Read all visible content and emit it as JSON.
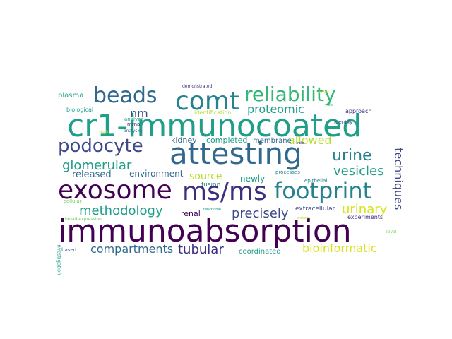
{
  "palette": {
    "dark_purple": "#440154",
    "indigo": "#3b2f7e",
    "slate_blue": "#3e4a89",
    "steel_blue": "#31688e",
    "teal": "#26828e",
    "sea_green": "#1f9e89",
    "green": "#35b779",
    "light_green": "#6ece58",
    "lime": "#b5de2b",
    "yellow": "#d8e219"
  },
  "words": [
    {
      "text": "immunoabsorption",
      "color": "dark_purple",
      "icon": "word"
    },
    {
      "text": "cr1-immunocoated",
      "color": "sea_green",
      "icon": "word"
    },
    {
      "text": "attesting",
      "color": "steel_blue",
      "icon": "word"
    },
    {
      "text": "exosome",
      "color": "dark_purple",
      "icon": "word"
    },
    {
      "text": "ms/ms",
      "color": "indigo",
      "icon": "word"
    },
    {
      "text": "footprint",
      "color": "teal",
      "icon": "word"
    },
    {
      "text": "comt",
      "color": "teal",
      "icon": "word"
    },
    {
      "text": "beads",
      "color": "steel_blue",
      "icon": "word"
    },
    {
      "text": "reliability",
      "color": "green",
      "icon": "word"
    },
    {
      "text": "podocyte",
      "color": "slate_blue",
      "icon": "word"
    },
    {
      "text": "urine",
      "color": "teal",
      "icon": "word"
    },
    {
      "text": "glomerular",
      "color": "sea_green",
      "icon": "word"
    },
    {
      "text": "methodology",
      "color": "sea_green",
      "icon": "word"
    },
    {
      "text": "vesicles",
      "color": "sea_green",
      "icon": "word"
    },
    {
      "text": "urinary",
      "color": "yellow",
      "icon": "word"
    },
    {
      "text": "techniques",
      "color": "slate_blue",
      "icon": "word"
    },
    {
      "text": "precisely",
      "color": "slate_blue",
      "icon": "word"
    },
    {
      "text": "tubular",
      "color": "indigo",
      "icon": "word"
    },
    {
      "text": "compartments",
      "color": "steel_blue",
      "icon": "word"
    },
    {
      "text": "bioinformatic",
      "color": "yellow",
      "icon": "word"
    },
    {
      "text": "proteomic",
      "color": "sea_green",
      "icon": "word"
    },
    {
      "text": "allowed",
      "color": "lime",
      "icon": "word"
    },
    {
      "text": "nm",
      "color": "slate_blue",
      "icon": "word"
    },
    {
      "text": "source",
      "color": "lime",
      "icon": "word"
    },
    {
      "text": "released",
      "color": "steel_blue",
      "icon": "word"
    },
    {
      "text": "environment",
      "color": "steel_blue",
      "icon": "word"
    },
    {
      "text": "newly",
      "color": "sea_green",
      "icon": "word"
    },
    {
      "text": "kidney",
      "color": "steel_blue",
      "icon": "word"
    },
    {
      "text": "completed",
      "color": "sea_green",
      "icon": "word"
    },
    {
      "text": "membrane",
      "color": "steel_blue",
      "icon": "word"
    },
    {
      "text": "renal",
      "color": "dark_purple",
      "icon": "word"
    },
    {
      "text": "coordinated",
      "color": "sea_green",
      "icon": "word"
    },
    {
      "text": "extracellular",
      "color": "slate_blue",
      "icon": "word"
    },
    {
      "text": "plasma",
      "color": "sea_green",
      "icon": "word"
    },
    {
      "text": "biological",
      "color": "sea_green",
      "icon": "word"
    },
    {
      "text": "mrna",
      "color": "indigo",
      "icon": "word"
    },
    {
      "text": "analyze",
      "color": "sea_green",
      "icon": "word"
    },
    {
      "text": "analysis",
      "color": "steel_blue",
      "icon": "word"
    },
    {
      "text": "identification",
      "color": "lime",
      "icon": "word"
    },
    {
      "text": "approach",
      "color": "indigo",
      "icon": "word"
    },
    {
      "text": "identify",
      "color": "slate_blue",
      "icon": "word"
    },
    {
      "text": "processes",
      "color": "teal",
      "icon": "word"
    },
    {
      "text": "epithelial",
      "color": "teal",
      "icon": "word"
    },
    {
      "text": "fusion",
      "color": "teal",
      "icon": "word"
    },
    {
      "text": "experiments",
      "color": "indigo",
      "icon": "word"
    },
    {
      "text": "investigation",
      "color": "sea_green",
      "icon": "word"
    },
    {
      "text": "cellular",
      "color": "light_green",
      "icon": "word"
    },
    {
      "text": "based",
      "color": "steel_blue",
      "icon": "word"
    },
    {
      "text": "level",
      "color": "light_green",
      "icon": "word"
    },
    {
      "text": "demonstrated",
      "color": "indigo",
      "icon": "word"
    },
    {
      "text": "functional",
      "color": "sea_green",
      "icon": "word"
    },
    {
      "text": "protein",
      "color": "lime",
      "icon": "word"
    },
    {
      "text": "role",
      "color": "indigo",
      "icon": "word"
    },
    {
      "text": "study",
      "color": "lime",
      "icon": "word"
    },
    {
      "text": "novel",
      "color": "yellow",
      "icon": "word"
    },
    {
      "text": "yield",
      "color": "green",
      "icon": "word"
    },
    {
      "text": "broad-expression",
      "color": "light_green",
      "icon": "word"
    }
  ]
}
